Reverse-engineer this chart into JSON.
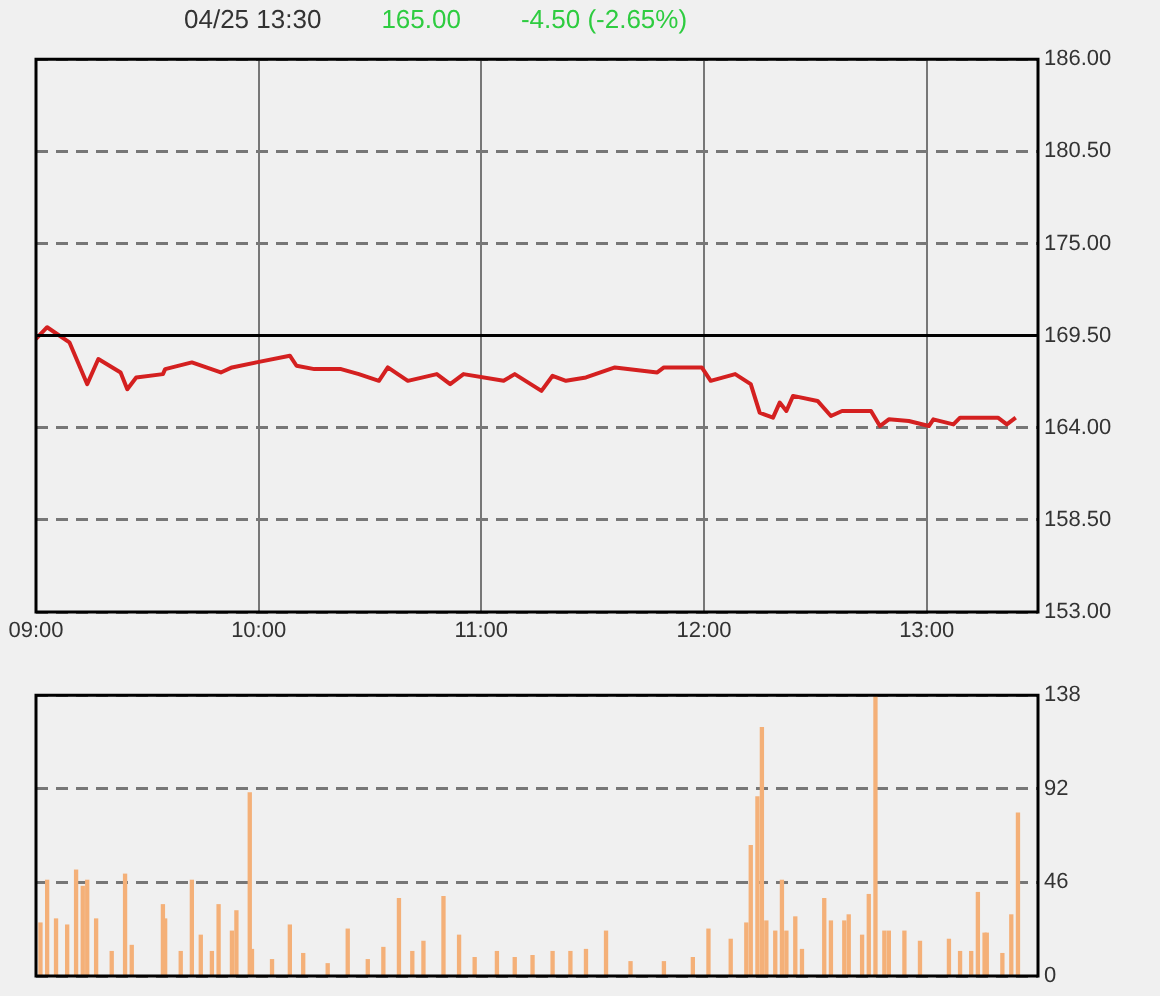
{
  "chart_data": [
    {
      "type": "line",
      "title": "04/25 13:30",
      "annotations": [
        "165.00",
        "-4.50 (-2.65%)"
      ],
      "x": [
        9.0,
        9.05,
        9.15,
        9.23,
        9.28,
        9.38,
        9.41,
        9.45,
        9.57,
        9.58,
        9.7,
        9.83,
        9.88,
        9.99,
        10.14,
        10.17,
        10.25,
        10.37,
        10.45,
        10.54,
        10.58,
        10.67,
        10.8,
        10.86,
        10.92,
        11.1,
        11.15,
        11.27,
        11.32,
        11.38,
        11.47,
        11.6,
        11.79,
        11.82,
        11.99,
        12.03,
        12.14,
        12.21,
        12.25,
        12.31,
        12.34,
        12.37,
        12.4,
        12.51,
        12.57,
        12.62,
        12.75,
        12.79,
        12.83,
        12.92,
        13.01,
        13.03,
        13.12,
        13.15,
        13.32,
        13.36,
        13.4
      ],
      "series": [
        {
          "color": "#d42020",
          "values": [
            169.3,
            170.0,
            169.1,
            166.6,
            168.1,
            167.3,
            166.3,
            167.0,
            167.2,
            167.5,
            167.9,
            167.3,
            167.6,
            167.9,
            168.3,
            167.7,
            167.5,
            167.5,
            167.2,
            166.8,
            167.6,
            166.8,
            167.2,
            166.6,
            167.2,
            166.8,
            167.2,
            166.2,
            167.1,
            166.8,
            167.0,
            167.6,
            167.3,
            167.6,
            167.6,
            166.8,
            167.2,
            166.6,
            164.9,
            164.6,
            165.5,
            165.0,
            165.9,
            165.6,
            164.7,
            165.0,
            165.0,
            164.1,
            164.5,
            164.4,
            164.1,
            164.5,
            164.2,
            164.6,
            164.6,
            164.2,
            164.6
          ]
        }
      ],
      "xlim": [
        9,
        13.5
      ],
      "xticks": [
        {
          "value": 9,
          "label": "09:00"
        },
        {
          "value": 10,
          "label": "10:00"
        },
        {
          "value": 11,
          "label": "11:00"
        },
        {
          "value": 12,
          "label": "12:00"
        },
        {
          "value": 13,
          "label": "13:00"
        }
      ],
      "ylim": [
        153,
        186
      ],
      "yticks": [
        {
          "value": 153,
          "label": "153.00"
        },
        {
          "value": 158.5,
          "label": "158.50"
        },
        {
          "value": 164,
          "label": "164.00"
        },
        {
          "value": 169.5,
          "label": "169.50"
        },
        {
          "value": 175,
          "label": "175.00"
        },
        {
          "value": 180.5,
          "label": "180.50"
        },
        {
          "value": 186,
          "label": "186.00"
        }
      ],
      "ref_lines": [
        {
          "axis": "y",
          "value": 169.5,
          "color": "#000000"
        }
      ],
      "grid": true,
      "legend": false,
      "marker": "none",
      "line_style": "solid"
    },
    {
      "type": "bar",
      "x": [
        9.02,
        9.05,
        9.09,
        9.14,
        9.18,
        9.21,
        9.23,
        9.27,
        9.34,
        9.4,
        9.43,
        9.57,
        9.58,
        9.65,
        9.7,
        9.74,
        9.79,
        9.82,
        9.88,
        9.9,
        9.96,
        9.97,
        10.06,
        10.14,
        10.2,
        10.31,
        10.4,
        10.49,
        10.56,
        10.63,
        10.69,
        10.74,
        10.83,
        10.9,
        10.97,
        11.07,
        11.15,
        11.23,
        11.32,
        11.4,
        11.47,
        11.56,
        11.67,
        11.82,
        11.95,
        12.02,
        12.12,
        12.19,
        12.21,
        12.24,
        12.26,
        12.28,
        12.32,
        12.35,
        12.37,
        12.41,
        12.44,
        12.54,
        12.57,
        12.63,
        12.65,
        12.71,
        12.74,
        12.77,
        12.81,
        12.83,
        12.9,
        12.97,
        13.1,
        13.15,
        13.2,
        13.23,
        13.26,
        13.27,
        13.34,
        13.38,
        13.41
      ],
      "series": [
        {
          "color": "#f4b078",
          "values": [
            26,
            47,
            28,
            25,
            52,
            44,
            47,
            28,
            12,
            50,
            15,
            35,
            28,
            12,
            47,
            20,
            12,
            35,
            22,
            32,
            90,
            13,
            8,
            25,
            11,
            6,
            23,
            8,
            14,
            38,
            12,
            17,
            39,
            20,
            9,
            12,
            9,
            10,
            12,
            12,
            13,
            22,
            7,
            7,
            9,
            23,
            18,
            26,
            64,
            88,
            122,
            27,
            22,
            47,
            22,
            29,
            13,
            38,
            27,
            27,
            30,
            20,
            40,
            138,
            22,
            22,
            22,
            17,
            18,
            12,
            12,
            41,
            21,
            21,
            11,
            30,
            80
          ]
        }
      ],
      "xlim": [
        9,
        13.5
      ],
      "ylim": [
        0,
        138
      ],
      "yticks": [
        0,
        46,
        92,
        138
      ],
      "grid": "y",
      "legend": false,
      "tick_labels": "y"
    }
  ]
}
